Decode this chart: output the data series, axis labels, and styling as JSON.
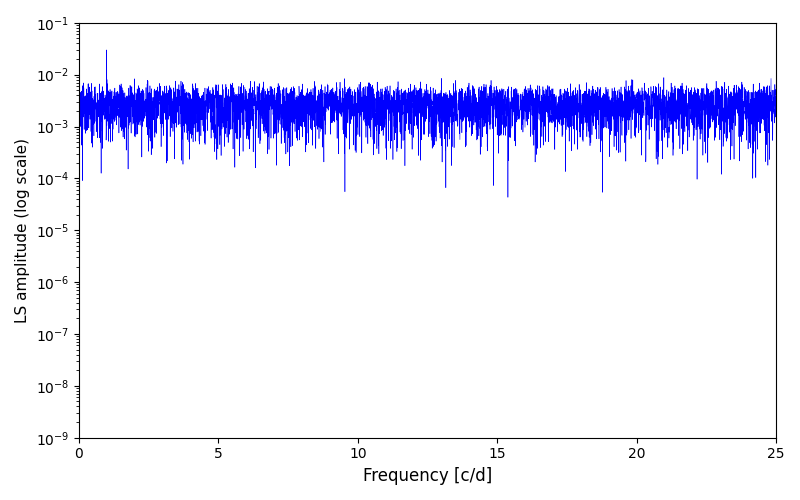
{
  "title": "",
  "xlabel": "Frequency [c/d]",
  "ylabel": "LS amplitude (log scale)",
  "line_color": "#0000ff",
  "xlim": [
    0,
    25
  ],
  "ylim": [
    1e-09,
    0.1
  ],
  "xticks": [
    0,
    5,
    10,
    15,
    20,
    25
  ],
  "background_color": "#ffffff",
  "figsize": [
    8.0,
    5.0
  ],
  "dpi": 100,
  "seed": 42,
  "n_obs": 400,
  "freq_max": 25.0,
  "n_freq": 6000,
  "freq_signal": 1.0,
  "obs_span": 365.0
}
